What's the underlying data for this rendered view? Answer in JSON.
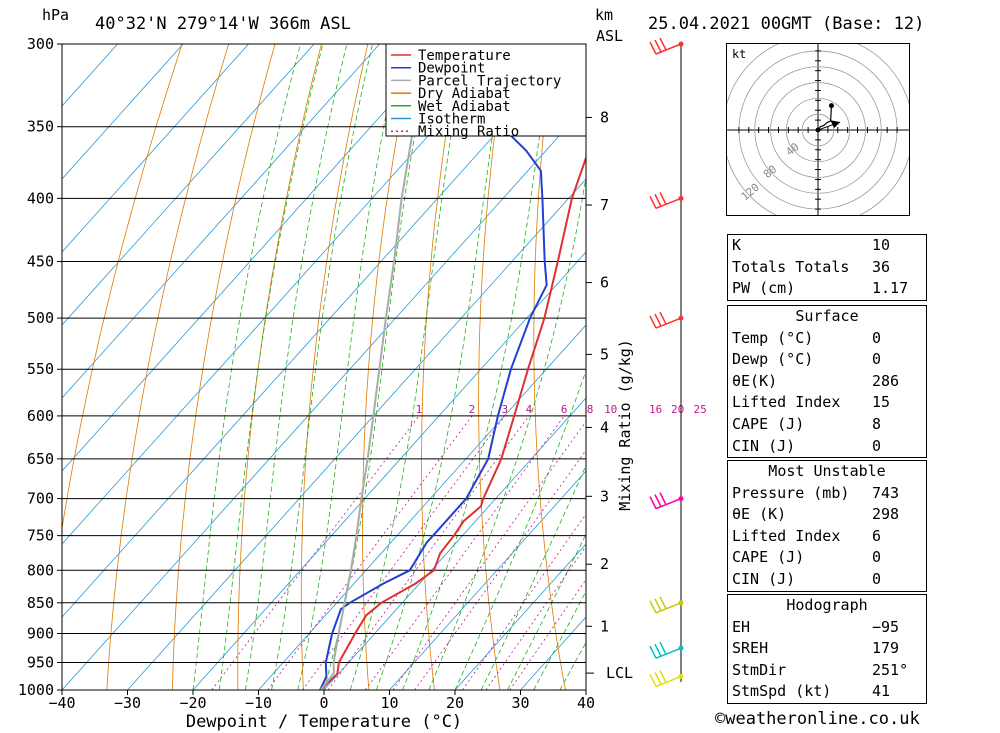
{
  "header": {
    "location": "40°32'N  279°14'W  366m  ASL",
    "datetime": "25.04.2021  00GMT  (Base: 12)",
    "pressure_unit": "hPa",
    "height_unit": "km",
    "height_unit2": "ASL"
  },
  "chart_data": {
    "type": "line",
    "title": "",
    "xlabel": "Dewpoint / Temperature (°C)",
    "ylabel": "hPa",
    "y2label": "Mixing Ratio (g/kg)",
    "xlim": [
      -40,
      40
    ],
    "ylim": [
      1000,
      300
    ],
    "y_scale": "log",
    "skew_per_log_unit": 73.5,
    "x_ticks": [
      "−40",
      "−30",
      "−20",
      "−10",
      "0",
      "10",
      "20",
      "30",
      "40"
    ],
    "pressure_ticks": [
      300,
      350,
      400,
      450,
      500,
      550,
      600,
      650,
      700,
      750,
      800,
      850,
      900,
      950,
      1000
    ],
    "height_ticks": [
      {
        "km": "1",
        "p": 888
      },
      {
        "km": "2",
        "p": 791
      },
      {
        "km": "3",
        "p": 697
      },
      {
        "km": "4",
        "p": 613
      },
      {
        "km": "5",
        "p": 535
      },
      {
        "km": "6",
        "p": 468
      },
      {
        "km": "7",
        "p": 405
      },
      {
        "km": "8",
        "p": 344
      }
    ],
    "lcl": {
      "label": "LCL",
      "p": 969
    },
    "mixing_ratio_labels": [
      "1",
      "2",
      "3",
      "4",
      "6",
      "8",
      "10",
      "16",
      "20",
      "25"
    ],
    "mixing_ratios": [
      1,
      2,
      3,
      4,
      6,
      8,
      10,
      16,
      20,
      25
    ],
    "legend": [
      "Temperature",
      "Dewpoint",
      "Parcel Trajectory",
      "Dry Adiabat",
      "Wet Adiabat",
      "Isotherm",
      "Mixing Ratio"
    ],
    "legend_position": "top-right",
    "series": [
      {
        "name": "Temperature",
        "color": "#e03030",
        "points": [
          [
            1000,
            -0.5
          ],
          [
            970,
            -0.2
          ],
          [
            950,
            -1.5
          ],
          [
            900,
            -3
          ],
          [
            870,
            -3.8
          ],
          [
            850,
            -3.2
          ],
          [
            820,
            -0.6
          ],
          [
            800,
            0.4
          ],
          [
            775,
            -1
          ],
          [
            750,
            -1.3
          ],
          [
            730,
            -1.8
          ],
          [
            710,
            -1.2
          ],
          [
            700,
            -1.9
          ],
          [
            650,
            -4.6
          ],
          [
            600,
            -8.5
          ],
          [
            550,
            -12.8
          ],
          [
            500,
            -17.3
          ],
          [
            450,
            -23
          ],
          [
            400,
            -29.5
          ],
          [
            370,
            -33
          ],
          [
            350,
            -31
          ],
          [
            330,
            -28
          ],
          [
            300,
            -29.5
          ]
        ]
      },
      {
        "name": "Dewpoint",
        "color": "#2040d0",
        "points": [
          [
            1000,
            -0.6
          ],
          [
            975,
            -1.5
          ],
          [
            950,
            -3.5
          ],
          [
            900,
            -6.5
          ],
          [
            860,
            -8.5
          ],
          [
            850,
            -8
          ],
          [
            820,
            -5.5
          ],
          [
            800,
            -3.3
          ],
          [
            760,
            -4.5
          ],
          [
            740,
            -4.5
          ],
          [
            700,
            -4.5
          ],
          [
            650,
            -6.6
          ],
          [
            600,
            -11
          ],
          [
            550,
            -15.4
          ],
          [
            500,
            -19.5
          ],
          [
            470,
            -21.5
          ],
          [
            450,
            -25
          ],
          [
            400,
            -34
          ],
          [
            380,
            -38
          ],
          [
            366,
            -43
          ],
          [
            350,
            -50
          ],
          [
            330,
            -48
          ],
          [
            300,
            -46
          ]
        ]
      },
      {
        "name": "Parcel Trajectory",
        "color": "#aaaaaa",
        "points": [
          [
            1000,
            -0.5
          ],
          [
            969,
            -0.8
          ],
          [
            950,
            -2.3
          ],
          [
            900,
            -5.5
          ],
          [
            850,
            -8.8
          ],
          [
            800,
            -12.3
          ],
          [
            750,
            -16.2
          ],
          [
            700,
            -20.5
          ],
          [
            650,
            -25
          ],
          [
            600,
            -30
          ],
          [
            550,
            -35.5
          ],
          [
            500,
            -41.5
          ],
          [
            450,
            -48
          ],
          [
            400,
            -55.5
          ],
          [
            350,
            -63.5
          ],
          [
            300,
            -72.5
          ]
        ]
      }
    ]
  },
  "winds": {
    "levels": [
      300,
      400,
      500,
      700,
      850,
      925,
      975
    ],
    "colors": [
      "#ff3030",
      "#ff3030",
      "#ff3030",
      "#ff00aa",
      "#c8c800",
      "#00c0c0",
      "#e0e000"
    ]
  },
  "hodograph": {
    "unit": "kt",
    "ring_labels": [
      "40",
      "80",
      "120"
    ],
    "trace": [
      [
        0,
        0
      ],
      [
        6,
        6
      ],
      [
        14,
        8
      ],
      [
        24,
        14
      ],
      [
        32,
        16
      ],
      [
        34,
        44
      ]
    ],
    "storm_motion": [
      28,
      10
    ]
  },
  "indices_box1": [
    {
      "k": "K",
      "v": "10"
    },
    {
      "k": "Totals Totals",
      "v": "36"
    },
    {
      "k": "PW (cm)",
      "v": "1.17"
    }
  ],
  "surface": {
    "title": "Surface",
    "rows": [
      {
        "k": "Temp (°C)",
        "v": "0"
      },
      {
        "k": "Dewp (°C)",
        "v": "0"
      },
      {
        "k": "θE(K)",
        "v": "286"
      },
      {
        "k": "Lifted Index",
        "v": "15"
      },
      {
        "k": "CAPE (J)",
        "v": "8"
      },
      {
        "k": "CIN (J)",
        "v": "0"
      }
    ]
  },
  "most_unstable": {
    "title": "Most Unstable",
    "rows": [
      {
        "k": "Pressure (mb)",
        "v": "743"
      },
      {
        "k": "θE (K)",
        "v": "298"
      },
      {
        "k": "Lifted Index",
        "v": "6"
      },
      {
        "k": "CAPE (J)",
        "v": "0"
      },
      {
        "k": "CIN (J)",
        "v": "0"
      }
    ]
  },
  "hodograph_box": {
    "title": "Hodograph",
    "rows": [
      {
        "k": "EH",
        "v": "−95"
      },
      {
        "k": "SREH",
        "v": "179"
      },
      {
        "k": "StmDir",
        "v": "251°"
      },
      {
        "k": "StmSpd (kt)",
        "v": "41"
      }
    ]
  },
  "footer": {
    "copyright": "©weatheronline.co.uk"
  },
  "colors": {
    "temperature": "#e03030",
    "dewpoint": "#2040d0",
    "parcel": "#aaaaaa",
    "dry_adiabat": "#e07a00",
    "wet_adiabat": "#20b020",
    "isotherm": "#2a9ad6",
    "mixing_ratio": "#c01890"
  }
}
